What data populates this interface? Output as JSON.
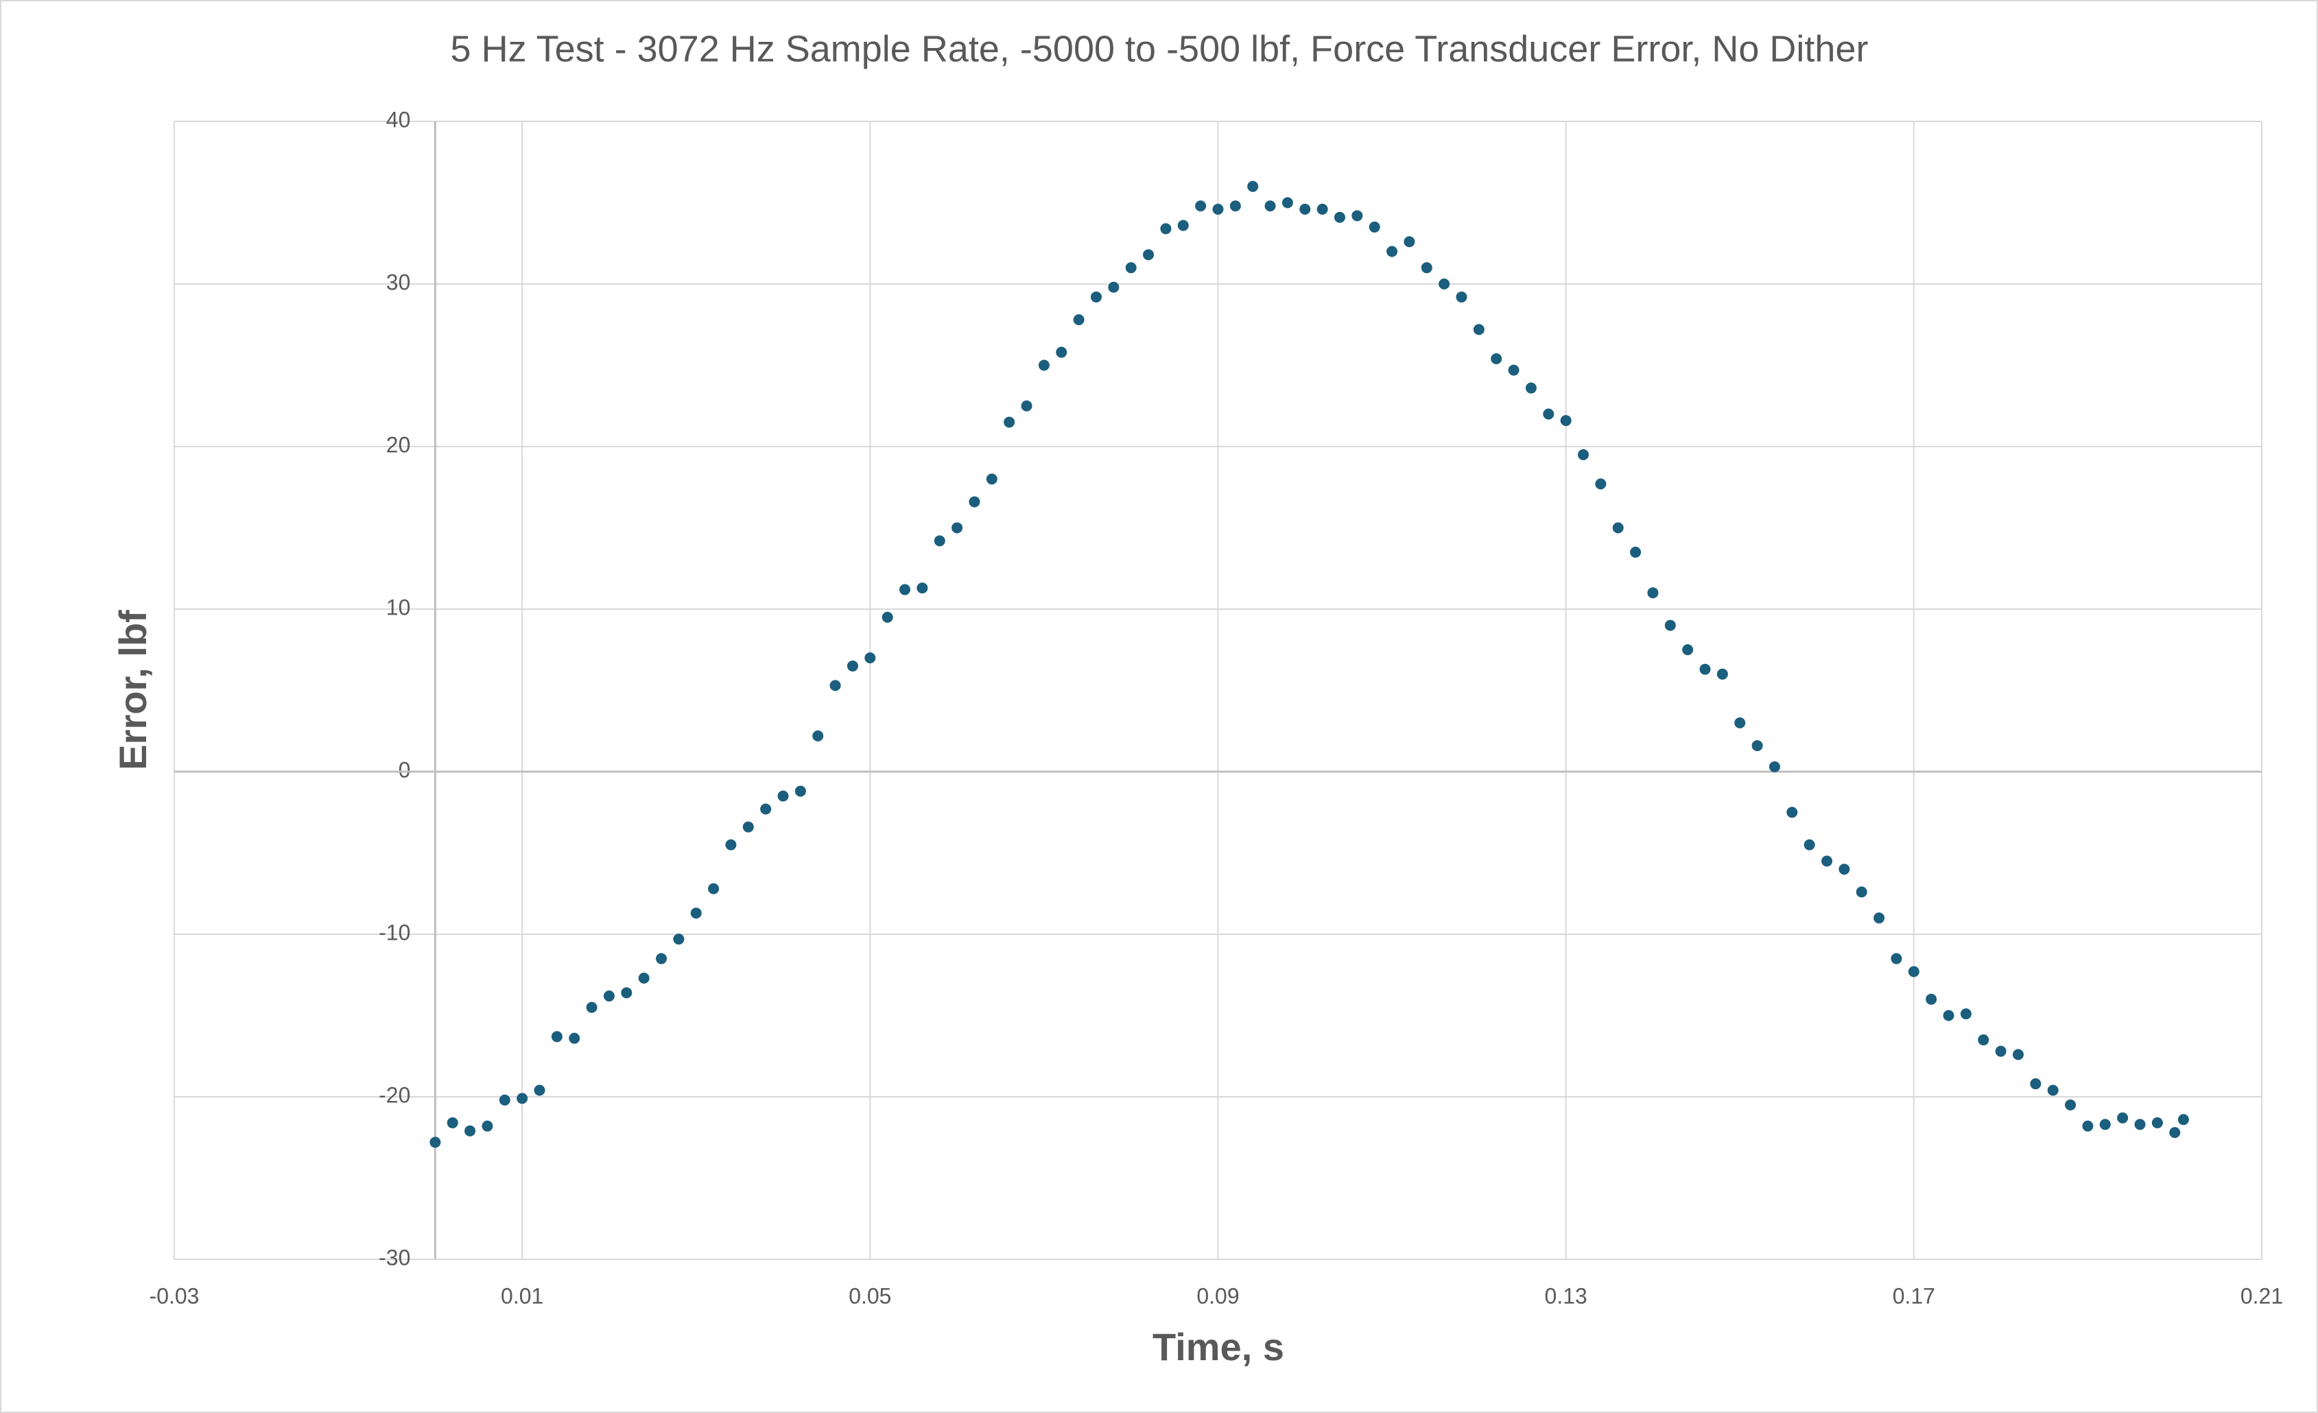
{
  "chart_data": {
    "type": "scatter",
    "title": "5 Hz Test - 3072 Hz Sample Rate, -5000 to -500 lbf, Force Transducer Error, No Dither",
    "x_label": "Time, s",
    "y_label": "Error, lbf",
    "color": "#1b5e7e",
    "grid": true,
    "xlim": [
      -0.03,
      0.21
    ],
    "xticks": [
      -0.03,
      0.01,
      0.05,
      0.09,
      0.13,
      0.17,
      0.21
    ],
    "ylim": [
      -30,
      40
    ],
    "yticks": [
      -30,
      -20,
      -10,
      0,
      10,
      20,
      30,
      40
    ],
    "series": [
      {
        "name": "Error",
        "x": [
          0,
          0.002,
          0.004,
          0.006,
          0.008,
          0.01,
          0.012,
          0.014,
          0.016,
          0.018,
          0.02,
          0.022,
          0.024,
          0.026,
          0.028,
          0.03,
          0.032,
          0.034,
          0.036,
          0.038,
          0.04,
          0.042,
          0.044,
          0.046,
          0.048,
          0.05,
          0.052,
          0.054,
          0.056,
          0.058,
          0.06,
          0.062,
          0.064,
          0.066,
          0.068,
          0.07,
          0.072,
          0.074,
          0.076,
          0.078,
          0.08,
          0.082,
          0.084,
          0.086,
          0.088,
          0.09,
          0.092,
          0.094,
          0.096,
          0.098,
          0.1,
          0.102,
          0.104,
          0.106,
          0.108,
          0.11,
          0.112,
          0.114,
          0.116,
          0.118,
          0.12,
          0.122,
          0.124,
          0.126,
          0.128,
          0.13,
          0.132,
          0.134,
          0.136,
          0.138,
          0.14,
          0.142,
          0.144,
          0.146,
          0.148,
          0.15,
          0.152,
          0.154,
          0.156,
          0.158,
          0.16,
          0.162,
          0.164,
          0.166,
          0.168,
          0.17,
          0.172,
          0.174,
          0.176,
          0.178,
          0.18,
          0.182,
          0.184,
          0.186,
          0.188,
          0.19,
          0.192,
          0.194,
          0.196,
          0.198,
          0.2,
          0.201
        ],
        "values": [
          -22.8,
          -21.6,
          -22.1,
          -21.8,
          -20.2,
          -20.1,
          -19.6,
          -16.3,
          -16.4,
          -14.5,
          -13.8,
          -13.6,
          -12.7,
          -11.5,
          -10.3,
          -8.7,
          -7.2,
          -4.5,
          -3.4,
          -2.3,
          -1.5,
          -1.2,
          2.2,
          5.3,
          6.5,
          7.0,
          9.5,
          11.2,
          11.3,
          14.2,
          15.0,
          16.6,
          18.0,
          21.5,
          22.5,
          25.0,
          25.8,
          27.8,
          29.2,
          29.8,
          31.0,
          31.8,
          33.4,
          33.6,
          34.8,
          34.6,
          34.8,
          36.0,
          34.8,
          35.0,
          34.6,
          34.6,
          34.1,
          34.2,
          33.5,
          32.0,
          32.6,
          31.0,
          30.0,
          29.2,
          27.2,
          25.4,
          24.7,
          23.6,
          22.0,
          21.6,
          19.5,
          17.7,
          15.0,
          13.5,
          11.0,
          9.0,
          7.5,
          6.3,
          6.0,
          3.0,
          1.6,
          0.3,
          -2.5,
          -4.5,
          -5.5,
          -6.0,
          -7.4,
          -9.0,
          -11.5,
          -12.3,
          -14.0,
          -15.0,
          -14.9,
          -16.5,
          -17.2,
          -17.4,
          -19.2,
          -19.6,
          -20.5,
          -21.8,
          -21.7,
          -21.3,
          -21.7,
          -21.6,
          -22.2,
          -21.4
        ]
      }
    ]
  }
}
